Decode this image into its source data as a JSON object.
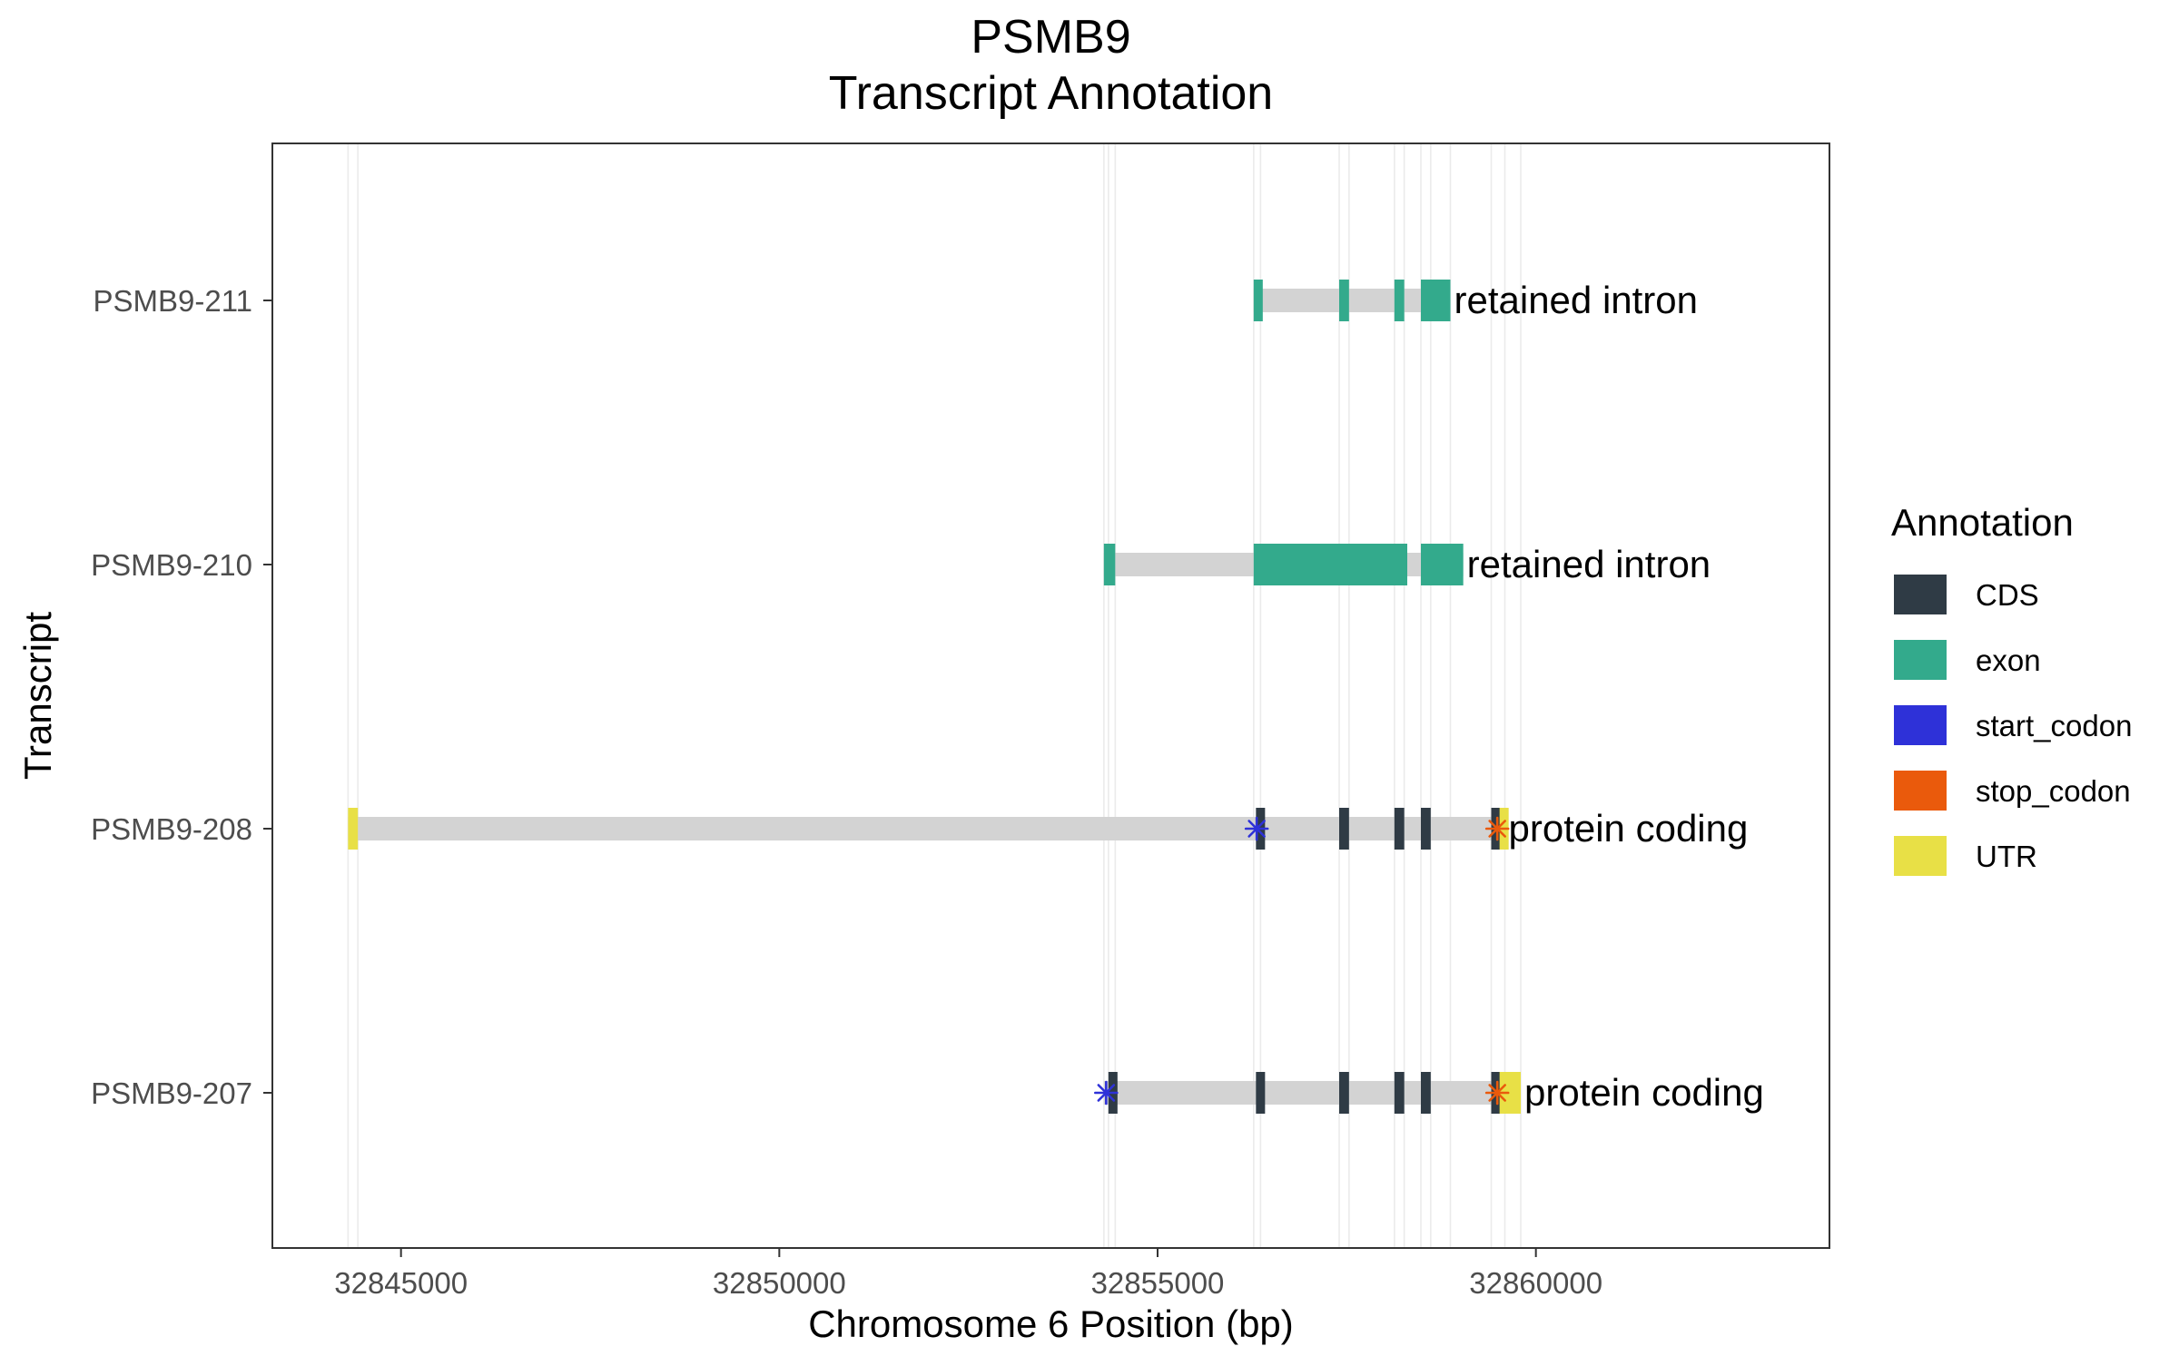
{
  "chart_data": {
    "type": "gene-track",
    "title": "PSMB9",
    "subtitle": "Transcript Annotation",
    "xlabel": "Chromosome 6 Position (bp)",
    "ylabel": "Transcript",
    "xlim": [
      32843300,
      32863880
    ],
    "xticks": [
      32845000,
      32850000,
      32855000,
      32860000
    ],
    "xtick_labels": [
      "32845000",
      "32850000",
      "32855000",
      "32860000"
    ],
    "grid": "vertical lines at feature boundaries",
    "legend": {
      "title": "Annotation",
      "placement": "right",
      "entries": [
        {
          "name": "CDS",
          "color": "#2f3b45"
        },
        {
          "name": "exon",
          "color": "#33aa8c"
        },
        {
          "name": "start_codon",
          "color": "#2e31d8"
        },
        {
          "name": "stop_codon",
          "color": "#ea5a0c"
        },
        {
          "name": "UTR",
          "color": "#e8e046"
        }
      ]
    },
    "intron_color": "#d3d3d3",
    "grid_positions": [
      32844300,
      32844430,
      32854290,
      32854350,
      32854440,
      32856270,
      32856360,
      32857400,
      32857530,
      32858130,
      32858260,
      32858480,
      32858610,
      32858870,
      32859410,
      32859590,
      32859800
    ],
    "transcripts": [
      {
        "name": "PSMB9-211",
        "biotype": "retained intron",
        "start": 32856270,
        "end": 32858870,
        "features": [
          {
            "type": "exon",
            "start": 32856270,
            "end": 32856390
          },
          {
            "type": "exon",
            "start": 32857400,
            "end": 32857530
          },
          {
            "type": "exon",
            "start": 32858130,
            "end": 32858260
          },
          {
            "type": "exon",
            "start": 32858480,
            "end": 32858870
          }
        ]
      },
      {
        "name": "PSMB9-210",
        "biotype": "retained intron",
        "start": 32854290,
        "end": 32859040,
        "features": [
          {
            "type": "exon",
            "start": 32854290,
            "end": 32854440
          },
          {
            "type": "exon",
            "start": 32856270,
            "end": 32858300
          },
          {
            "type": "exon",
            "start": 32858480,
            "end": 32859040
          }
        ]
      },
      {
        "name": "PSMB9-208",
        "biotype": "protein coding",
        "start": 32844300,
        "end": 32859590,
        "features": [
          {
            "type": "UTR",
            "start": 32844300,
            "end": 32844430
          },
          {
            "type": "CDS",
            "start": 32856300,
            "end": 32856380
          },
          {
            "type": "CDS",
            "start": 32857400,
            "end": 32857530
          },
          {
            "type": "CDS",
            "start": 32858130,
            "end": 32858260
          },
          {
            "type": "CDS",
            "start": 32858480,
            "end": 32858610
          },
          {
            "type": "CDS",
            "start": 32859410,
            "end": 32859520
          },
          {
            "type": "UTR",
            "start": 32859520,
            "end": 32859590
          },
          {
            "type": "start_codon",
            "pos": 32856310
          },
          {
            "type": "stop_codon",
            "pos": 32859490
          }
        ]
      },
      {
        "name": "PSMB9-207",
        "biotype": "protein coding",
        "start": 32854290,
        "end": 32859800,
        "features": [
          {
            "type": "CDS",
            "start": 32854350,
            "end": 32854420
          },
          {
            "type": "CDS",
            "start": 32856300,
            "end": 32856380
          },
          {
            "type": "CDS",
            "start": 32857400,
            "end": 32857530
          },
          {
            "type": "CDS",
            "start": 32858130,
            "end": 32858260
          },
          {
            "type": "CDS",
            "start": 32858480,
            "end": 32858610
          },
          {
            "type": "CDS",
            "start": 32859410,
            "end": 32859520
          },
          {
            "type": "UTR",
            "start": 32859520,
            "end": 32859800
          },
          {
            "type": "start_codon",
            "pos": 32854320
          },
          {
            "type": "stop_codon",
            "pos": 32859490
          }
        ]
      }
    ]
  }
}
